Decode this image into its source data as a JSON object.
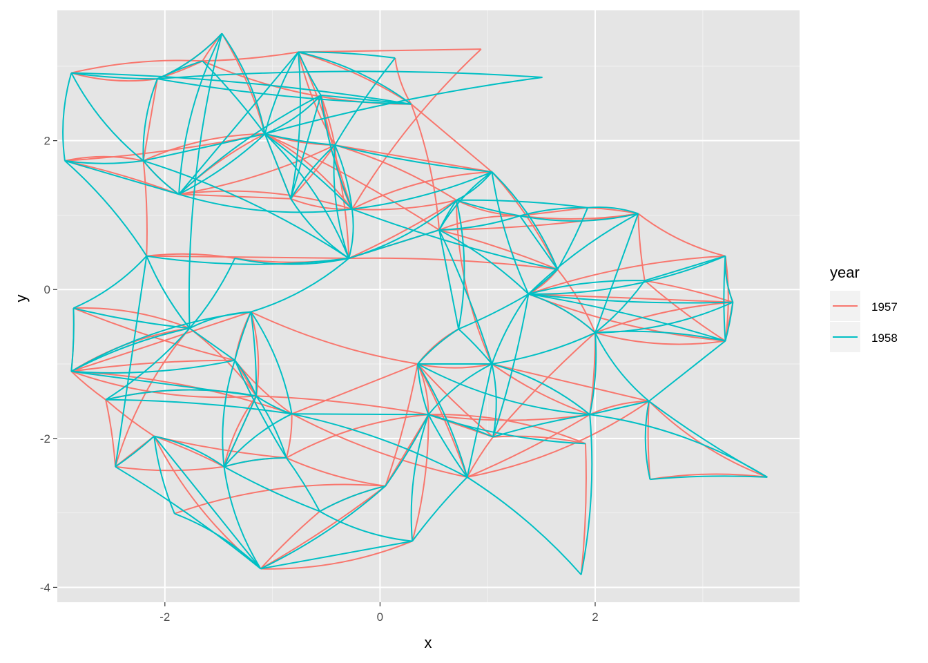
{
  "chart_data": {
    "type": "line",
    "title": "",
    "xlabel": "x",
    "ylabel": "y",
    "xlim": [
      -3.0,
      3.9
    ],
    "ylim": [
      -4.2,
      3.75
    ],
    "x_ticks": [
      -2,
      0,
      2
    ],
    "x_tick_labels": [
      "-2",
      "0",
      "2"
    ],
    "y_ticks": [
      -4,
      -2,
      0,
      2
    ],
    "y_tick_labels": [
      "-4",
      "-2",
      "0",
      "2"
    ],
    "grid": true,
    "background": "#e5e5e5",
    "legend": {
      "title": "year",
      "position": "right",
      "entries": [
        {
          "label": "1957",
          "color": "#F8766D"
        },
        {
          "label": "1958",
          "color": "#00BFC4"
        }
      ]
    },
    "nodes": [
      [
        -2.93,
        1.73
      ],
      [
        -2.87,
        2.91
      ],
      [
        -2.2,
        1.73
      ],
      [
        -2.07,
        2.83
      ],
      [
        -1.87,
        1.28
      ],
      [
        -1.65,
        3.07
      ],
      [
        -1.47,
        3.44
      ],
      [
        -1.07,
        2.09
      ],
      [
        -0.83,
        1.22
      ],
      [
        -0.76,
        3.19
      ],
      [
        -0.55,
        2.61
      ],
      [
        -0.42,
        1.94
      ],
      [
        -0.26,
        1.08
      ],
      [
        -0.29,
        0.42
      ],
      [
        0.14,
        3.11
      ],
      [
        0.29,
        2.49
      ],
      [
        0.94,
        3.23
      ],
      [
        1.51,
        2.85
      ],
      [
        0.55,
        0.8
      ],
      [
        0.71,
        1.2
      ],
      [
        1.04,
        1.58
      ],
      [
        1.3,
        0.99
      ],
      [
        1.65,
        0.27
      ],
      [
        1.93,
        1.1
      ],
      [
        2.4,
        1.02
      ],
      [
        1.38,
        -0.06
      ],
      [
        2.46,
        0.12
      ],
      [
        3.21,
        0.45
      ],
      [
        3.28,
        -0.17
      ],
      [
        3.21,
        -0.69
      ],
      [
        2.0,
        -0.58
      ],
      [
        0.73,
        -0.53
      ],
      [
        -2.17,
        0.45
      ],
      [
        -1.35,
        0.42
      ],
      [
        -2.85,
        -0.25
      ],
      [
        -1.77,
        -0.52
      ],
      [
        -1.2,
        -0.3
      ],
      [
        -2.87,
        -1.1
      ],
      [
        -1.35,
        -0.95
      ],
      [
        -2.55,
        -1.48
      ],
      [
        -1.15,
        -1.43
      ],
      [
        -0.82,
        -1.67
      ],
      [
        -2.46,
        -2.38
      ],
      [
        -2.1,
        -1.97
      ],
      [
        -1.45,
        -2.38
      ],
      [
        -0.87,
        -2.26
      ],
      [
        -1.91,
        -3.01
      ],
      [
        -1.11,
        -3.75
      ],
      [
        -0.56,
        -2.98
      ],
      [
        0.05,
        -2.64
      ],
      [
        0.3,
        -3.38
      ],
      [
        0.35,
        -1.0
      ],
      [
        0.45,
        -1.68
      ],
      [
        0.81,
        -2.52
      ],
      [
        1.05,
        -1.98
      ],
      [
        1.04,
        -1.0
      ],
      [
        1.95,
        -1.68
      ],
      [
        1.91,
        -2.07
      ],
      [
        1.87,
        -3.83
      ],
      [
        2.5,
        -1.5
      ],
      [
        2.51,
        -2.55
      ],
      [
        3.6,
        -2.52
      ]
    ],
    "series": [
      {
        "name": "1957",
        "color": "#F8766D",
        "edges": [
          [
            0,
            2
          ],
          [
            0,
            4
          ],
          [
            0,
            7
          ],
          [
            1,
            3
          ],
          [
            1,
            5
          ],
          [
            2,
            3
          ],
          [
            2,
            4
          ],
          [
            2,
            7
          ],
          [
            2,
            32
          ],
          [
            3,
            5
          ],
          [
            3,
            6
          ],
          [
            4,
            7
          ],
          [
            4,
            8
          ],
          [
            4,
            11
          ],
          [
            4,
            12
          ],
          [
            5,
            6
          ],
          [
            5,
            9
          ],
          [
            5,
            15
          ],
          [
            6,
            7
          ],
          [
            7,
            8
          ],
          [
            7,
            11
          ],
          [
            7,
            12
          ],
          [
            7,
            18
          ],
          [
            8,
            11
          ],
          [
            8,
            12
          ],
          [
            9,
            15
          ],
          [
            9,
            16
          ],
          [
            9,
            11
          ],
          [
            9,
            13
          ],
          [
            10,
            11
          ],
          [
            10,
            12
          ],
          [
            11,
            12
          ],
          [
            11,
            19
          ],
          [
            11,
            20
          ],
          [
            12,
            19
          ],
          [
            12,
            20
          ],
          [
            13,
            22
          ],
          [
            13,
            19
          ],
          [
            14,
            15
          ],
          [
            15,
            18
          ],
          [
            15,
            20
          ],
          [
            16,
            12
          ],
          [
            18,
            21
          ],
          [
            18,
            22
          ],
          [
            18,
            24
          ],
          [
            19,
            21
          ],
          [
            20,
            22
          ],
          [
            21,
            23
          ],
          [
            21,
            24
          ],
          [
            22,
            25
          ],
          [
            23,
            24
          ],
          [
            24,
            26
          ],
          [
            24,
            27
          ],
          [
            25,
            27
          ],
          [
            25,
            28
          ],
          [
            25,
            29
          ],
          [
            25,
            30
          ],
          [
            26,
            28
          ],
          [
            26,
            29
          ],
          [
            27,
            28
          ],
          [
            27,
            29
          ],
          [
            28,
            29
          ],
          [
            28,
            30
          ],
          [
            29,
            30
          ],
          [
            30,
            56
          ],
          [
            30,
            54
          ],
          [
            31,
            51
          ],
          [
            32,
            33
          ],
          [
            32,
            13
          ],
          [
            33,
            13
          ],
          [
            34,
            35
          ],
          [
            34,
            37
          ],
          [
            34,
            38
          ],
          [
            35,
            37
          ],
          [
            35,
            40
          ],
          [
            36,
            37
          ],
          [
            36,
            38
          ],
          [
            36,
            40
          ],
          [
            37,
            38
          ],
          [
            37,
            39
          ],
          [
            37,
            40
          ],
          [
            37,
            41
          ],
          [
            38,
            40
          ],
          [
            38,
            41
          ],
          [
            39,
            40
          ],
          [
            39,
            42
          ],
          [
            39,
            43
          ],
          [
            40,
            44
          ],
          [
            41,
            45
          ],
          [
            42,
            43
          ],
          [
            42,
            44
          ],
          [
            42,
            35
          ],
          [
            43,
            44
          ],
          [
            43,
            45
          ],
          [
            43,
            47
          ],
          [
            44,
            45
          ],
          [
            44,
            40
          ],
          [
            45,
            49
          ],
          [
            46,
            49
          ],
          [
            47,
            48
          ],
          [
            47,
            49
          ],
          [
            47,
            50
          ],
          [
            48,
            49
          ],
          [
            49,
            52
          ],
          [
            50,
            52
          ],
          [
            51,
            52
          ],
          [
            51,
            53
          ],
          [
            51,
            54
          ],
          [
            51,
            55
          ],
          [
            51,
            31
          ],
          [
            52,
            54
          ],
          [
            52,
            56
          ],
          [
            52,
            57
          ],
          [
            53,
            54
          ],
          [
            53,
            56
          ],
          [
            53,
            59
          ],
          [
            54,
            57
          ],
          [
            55,
            59
          ],
          [
            55,
            56
          ],
          [
            56,
            59
          ],
          [
            57,
            58
          ],
          [
            59,
            60
          ],
          [
            59,
            61
          ],
          [
            60,
            61
          ],
          [
            41,
            51
          ],
          [
            36,
            51
          ],
          [
            45,
            52
          ],
          [
            40,
            52
          ],
          [
            49,
            51
          ],
          [
            19,
            55
          ],
          [
            22,
            30
          ],
          [
            13,
            18
          ],
          [
            41,
            53
          ]
        ]
      },
      {
        "name": "1958",
        "color": "#00BFC4",
        "edges": [
          [
            0,
            1
          ],
          [
            0,
            2
          ],
          [
            0,
            4
          ],
          [
            0,
            32
          ],
          [
            1,
            2
          ],
          [
            1,
            3
          ],
          [
            1,
            15
          ],
          [
            2,
            3
          ],
          [
            2,
            4
          ],
          [
            2,
            7
          ],
          [
            2,
            13
          ],
          [
            3,
            6
          ],
          [
            3,
            15
          ],
          [
            3,
            17
          ],
          [
            4,
            6
          ],
          [
            4,
            7
          ],
          [
            4,
            9
          ],
          [
            4,
            10
          ],
          [
            4,
            12
          ],
          [
            5,
            3
          ],
          [
            5,
            7
          ],
          [
            6,
            7
          ],
          [
            6,
            35
          ],
          [
            7,
            8
          ],
          [
            7,
            9
          ],
          [
            7,
            10
          ],
          [
            7,
            11
          ],
          [
            7,
            12
          ],
          [
            7,
            13
          ],
          [
            8,
            9
          ],
          [
            8,
            10
          ],
          [
            8,
            11
          ],
          [
            8,
            13
          ],
          [
            9,
            10
          ],
          [
            9,
            14
          ],
          [
            9,
            15
          ],
          [
            10,
            12
          ],
          [
            10,
            15
          ],
          [
            11,
            12
          ],
          [
            11,
            13
          ],
          [
            11,
            20
          ],
          [
            11,
            14
          ],
          [
            12,
            13
          ],
          [
            12,
            20
          ],
          [
            13,
            18
          ],
          [
            13,
            32
          ],
          [
            13,
            19
          ],
          [
            17,
            7
          ],
          [
            18,
            19
          ],
          [
            18,
            20
          ],
          [
            18,
            21
          ],
          [
            18,
            31
          ],
          [
            18,
            25
          ],
          [
            19,
            20
          ],
          [
            19,
            21
          ],
          [
            19,
            23
          ],
          [
            20,
            22
          ],
          [
            20,
            25
          ],
          [
            21,
            22
          ],
          [
            21,
            23
          ],
          [
            21,
            24
          ],
          [
            22,
            23
          ],
          [
            22,
            25
          ],
          [
            23,
            24
          ],
          [
            24,
            25
          ],
          [
            24,
            30
          ],
          [
            25,
            26
          ],
          [
            25,
            27
          ],
          [
            25,
            28
          ],
          [
            25,
            29
          ],
          [
            25,
            30
          ],
          [
            25,
            55
          ],
          [
            26,
            27
          ],
          [
            26,
            30
          ],
          [
            27,
            28
          ],
          [
            27,
            29
          ],
          [
            28,
            29
          ],
          [
            28,
            30
          ],
          [
            29,
            30
          ],
          [
            29,
            59
          ],
          [
            30,
            56
          ],
          [
            30,
            59
          ],
          [
            31,
            25
          ],
          [
            31,
            55
          ],
          [
            32,
            34
          ],
          [
            32,
            35
          ],
          [
            32,
            42
          ],
          [
            33,
            35
          ],
          [
            33,
            13
          ],
          [
            34,
            35
          ],
          [
            34,
            37
          ],
          [
            35,
            36
          ],
          [
            35,
            37
          ],
          [
            35,
            38
          ],
          [
            35,
            39
          ],
          [
            36,
            37
          ],
          [
            36,
            38
          ],
          [
            36,
            40
          ],
          [
            36,
            41
          ],
          [
            37,
            38
          ],
          [
            37,
            40
          ],
          [
            38,
            40
          ],
          [
            38,
            44
          ],
          [
            38,
            45
          ],
          [
            39,
            41
          ],
          [
            39,
            40
          ],
          [
            40,
            41
          ],
          [
            40,
            44
          ],
          [
            40,
            45
          ],
          [
            41,
            44
          ],
          [
            42,
            43
          ],
          [
            42,
            47
          ],
          [
            43,
            44
          ],
          [
            43,
            46
          ],
          [
            43,
            47
          ],
          [
            44,
            45
          ],
          [
            44,
            47
          ],
          [
            44,
            48
          ],
          [
            45,
            48
          ],
          [
            46,
            47
          ],
          [
            47,
            49
          ],
          [
            47,
            50
          ],
          [
            48,
            49
          ],
          [
            48,
            50
          ],
          [
            49,
            52
          ],
          [
            50,
            53
          ],
          [
            50,
            52
          ],
          [
            51,
            52
          ],
          [
            51,
            55
          ],
          [
            51,
            53
          ],
          [
            51,
            56
          ],
          [
            52,
            53
          ],
          [
            52,
            54
          ],
          [
            52,
            55
          ],
          [
            52,
            57
          ],
          [
            53,
            55
          ],
          [
            53,
            58
          ],
          [
            54,
            55
          ],
          [
            54,
            25
          ],
          [
            54,
            56
          ],
          [
            55,
            56
          ],
          [
            55,
            30
          ],
          [
            56,
            59
          ],
          [
            56,
            58
          ],
          [
            59,
            60
          ],
          [
            59,
            61
          ],
          [
            60,
            61
          ],
          [
            56,
            61
          ],
          [
            31,
            51
          ],
          [
            41,
            52
          ],
          [
            41,
            53
          ],
          [
            36,
            13
          ],
          [
            12,
            22
          ],
          [
            18,
            55
          ],
          [
            19,
            31
          ]
        ]
      }
    ]
  }
}
